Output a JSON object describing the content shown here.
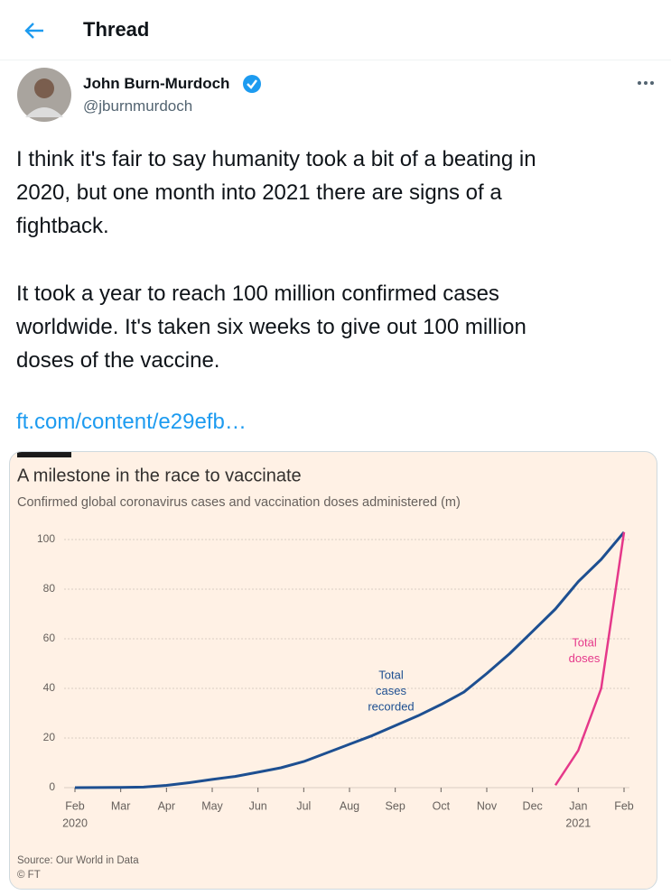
{
  "header": {
    "title": "Thread"
  },
  "tweet": {
    "name": "John Burn-Murdoch",
    "handle": "@jburnmurdoch",
    "paragraphs": [
      [
        "I think it's fair to say humanity took a bit of a beating in",
        "2020, but one month into 2021 there are signs of a",
        "fightback."
      ],
      [
        "It took a year to reach 100 million confirmed cases",
        "worldwide. It's taken six weeks to give out 100 million",
        "doses of the vaccine."
      ]
    ],
    "link": "ft.com/content/e29efb…"
  },
  "chart_data": {
    "type": "line",
    "title": "A milestone in the race to vaccinate",
    "subtitle": "Confirmed global coronavirus cases and vaccination doses administered (m)",
    "categories": [
      "Feb",
      null,
      "Mar",
      null,
      "Apr",
      null,
      "May",
      null,
      "Jun",
      null,
      "Jul",
      null,
      "Aug",
      null,
      "Sep",
      null,
      "Oct",
      null,
      "Nov",
      null,
      "Dec",
      null,
      "Jan",
      null,
      "Feb"
    ],
    "year_labels": [
      "2020",
      null,
      null,
      null,
      null,
      null,
      null,
      null,
      null,
      null,
      null,
      null,
      null,
      null,
      null,
      null,
      null,
      null,
      null,
      null,
      null,
      null,
      "2021",
      null,
      null
    ],
    "series": [
      {
        "name": "Total cases recorded",
        "color": "#1d4f91",
        "values": [
          0,
          0.05,
          0.1,
          0.2,
          0.9,
          2,
          3.3,
          4.5,
          6.2,
          8,
          10.5,
          14,
          17.5,
          21,
          25,
          29,
          33.5,
          38.5,
          46,
          54,
          63,
          72,
          83,
          92,
          103
        ]
      },
      {
        "name": "Total doses",
        "color": "#e5388a",
        "values": [
          null,
          null,
          null,
          null,
          null,
          null,
          null,
          null,
          null,
          null,
          null,
          null,
          null,
          null,
          null,
          null,
          null,
          null,
          null,
          null,
          null,
          1,
          15,
          40,
          103
        ]
      }
    ],
    "annotations": [
      [
        "Total",
        "cases",
        "recorded"
      ],
      [
        "Total",
        "doses"
      ]
    ],
    "ylim": [
      0,
      104
    ],
    "yticks": [
      0,
      20,
      40,
      60,
      80,
      100
    ],
    "grid": true,
    "source": "Source: Our World in Data",
    "credit": "© FT"
  }
}
